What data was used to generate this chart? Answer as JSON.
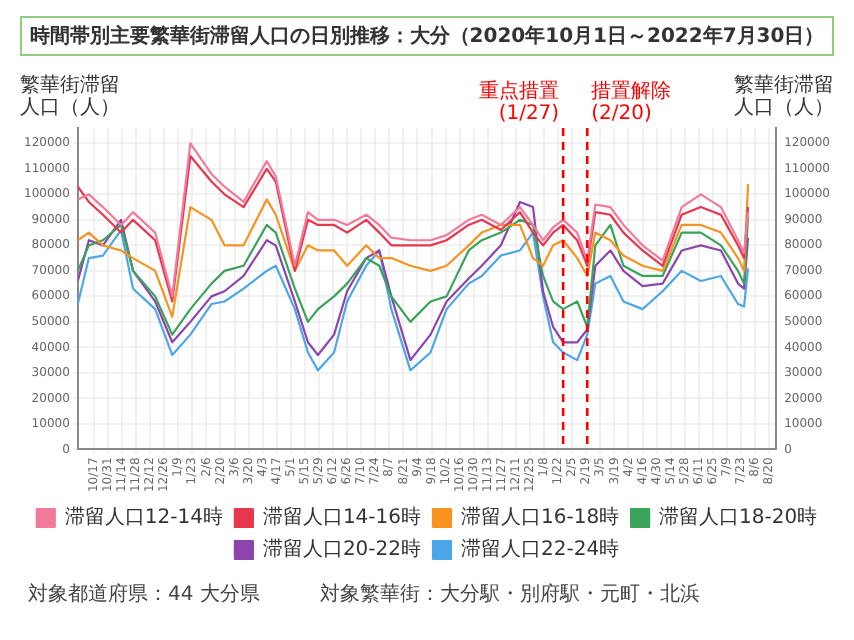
{
  "chart_data": {
    "type": "line",
    "title": "時間帯別主要繁華街滞留人口の日別推移：大分（2020年10月1日～2022年7月30日）",
    "ylabel": "繁華街滞留人口（人）",
    "y2label": "繁華街滞留人口（人）",
    "x": [
      "2020-10-01",
      "2020-10-12",
      "2020-10-26",
      "2020-11-13",
      "2020-11-25",
      "2020-12-17",
      "2021-01-03",
      "2021-01-21",
      "2021-02-11",
      "2021-02-24",
      "2021-03-15",
      "2021-04-07",
      "2021-04-16",
      "2021-05-05",
      "2021-05-18",
      "2021-05-28",
      "2021-06-13",
      "2021-06-26",
      "2021-07-15",
      "2021-07-28",
      "2021-08-09",
      "2021-08-28",
      "2021-09-17",
      "2021-10-03",
      "2021-10-25",
      "2021-11-07",
      "2021-11-26",
      "2021-12-15",
      "2021-12-28",
      "2022-01-07",
      "2022-01-17",
      "2022-01-27",
      "2022-02-10",
      "2022-02-20",
      "2022-02-28",
      "2022-03-15",
      "2022-03-28",
      "2022-04-16",
      "2022-05-06",
      "2022-05-25",
      "2022-06-13",
      "2022-07-03",
      "2022-07-20",
      "2022-07-26",
      "2022-07-30"
    ],
    "series": [
      {
        "name": "滞留人口12-14時",
        "color": "#f27a9b",
        "values": [
          98000,
          100000,
          95000,
          88000,
          93000,
          85000,
          60000,
          120000,
          108000,
          103000,
          97000,
          113000,
          107000,
          72000,
          93000,
          90000,
          90000,
          88000,
          92000,
          88000,
          83000,
          82000,
          82000,
          84000,
          90000,
          92000,
          88000,
          95000,
          88000,
          82000,
          87000,
          90000,
          85000,
          74000,
          96000,
          95000,
          88000,
          80000,
          74000,
          95000,
          100000,
          95000,
          82000,
          77000,
          93000
        ]
      },
      {
        "name": "滞留人口14-16時",
        "color": "#e8364f",
        "values": [
          103000,
          97000,
          92000,
          85000,
          90000,
          82000,
          58000,
          115000,
          105000,
          100000,
          95000,
          110000,
          105000,
          70000,
          90000,
          88000,
          88000,
          85000,
          90000,
          85000,
          80000,
          80000,
          80000,
          82000,
          88000,
          90000,
          86000,
          93000,
          85000,
          80000,
          85000,
          88000,
          82000,
          72000,
          93000,
          92000,
          85000,
          78000,
          72000,
          92000,
          95000,
          92000,
          80000,
          75000,
          95000
        ]
      },
      {
        "name": "滞留人口16-18時",
        "color": "#f7931e",
        "values": [
          82000,
          85000,
          80000,
          78000,
          75000,
          70000,
          52000,
          95000,
          90000,
          80000,
          80000,
          98000,
          92000,
          70000,
          80000,
          78000,
          78000,
          72000,
          80000,
          75000,
          75000,
          72000,
          70000,
          72000,
          80000,
          85000,
          88000,
          88000,
          75000,
          72000,
          80000,
          82000,
          75000,
          68000,
          85000,
          82000,
          76000,
          72000,
          70000,
          88000,
          88000,
          85000,
          75000,
          70000,
          104000
        ]
      },
      {
        "name": "滞留人口18-20時",
        "color": "#3aa35a",
        "values": [
          70000,
          80000,
          82000,
          88000,
          70000,
          60000,
          45000,
          55000,
          65000,
          70000,
          72000,
          88000,
          85000,
          63000,
          50000,
          55000,
          60000,
          65000,
          75000,
          72000,
          60000,
          50000,
          58000,
          60000,
          78000,
          82000,
          85000,
          90000,
          88000,
          68000,
          58000,
          55000,
          58000,
          48000,
          80000,
          88000,
          72000,
          68000,
          68000,
          85000,
          85000,
          80000,
          70000,
          65000,
          91000
        ]
      },
      {
        "name": "滞留人口20-22時",
        "color": "#8e44ad",
        "values": [
          66000,
          82000,
          80000,
          90000,
          70000,
          58000,
          42000,
          50000,
          60000,
          62000,
          68000,
          82000,
          80000,
          58000,
          42000,
          37000,
          45000,
          62000,
          75000,
          78000,
          60000,
          35000,
          45000,
          58000,
          67000,
          72000,
          80000,
          97000,
          95000,
          62000,
          48000,
          42000,
          42000,
          47000,
          72000,
          78000,
          70000,
          64000,
          65000,
          78000,
          80000,
          78000,
          65000,
          63000,
          83000
        ]
      },
      {
        "name": "滞留人口22-24時",
        "color": "#4da6e8",
        "values": [
          57000,
          75000,
          76000,
          86000,
          63000,
          55000,
          37000,
          45000,
          57000,
          58000,
          63000,
          70000,
          72000,
          55000,
          38000,
          31000,
          38000,
          58000,
          72000,
          78000,
          55000,
          31000,
          38000,
          55000,
          65000,
          68000,
          76000,
          78000,
          85000,
          60000,
          42000,
          38000,
          35000,
          45000,
          65000,
          68000,
          58000,
          55000,
          62000,
          70000,
          66000,
          68000,
          57000,
          56000,
          71000
        ]
      }
    ],
    "xlim": [
      "2020-10-01",
      "2022-08-27"
    ],
    "xticks": [
      {
        "value": "2020-10-17",
        "label": "10/17"
      },
      {
        "value": "2020-10-31",
        "label": "10/31"
      },
      {
        "value": "2020-11-14",
        "label": "11/14"
      },
      {
        "value": "2020-11-28",
        "label": "11/28"
      },
      {
        "value": "2020-12-12",
        "label": "12/12"
      },
      {
        "value": "2020-12-26",
        "label": "12/26"
      },
      {
        "value": "2021-01-09",
        "label": "1/9"
      },
      {
        "value": "2021-01-23",
        "label": "1/23"
      },
      {
        "value": "2021-02-06",
        "label": "2/6"
      },
      {
        "value": "2021-02-20",
        "label": "2/20"
      },
      {
        "value": "2021-03-06",
        "label": "3/6"
      },
      {
        "value": "2021-03-20",
        "label": "3/20"
      },
      {
        "value": "2021-04-03",
        "label": "4/3"
      },
      {
        "value": "2021-04-17",
        "label": "4/17"
      },
      {
        "value": "2021-05-01",
        "label": "5/1"
      },
      {
        "value": "2021-05-15",
        "label": "5/15"
      },
      {
        "value": "2021-05-29",
        "label": "5/29"
      },
      {
        "value": "2021-06-12",
        "label": "6/12"
      },
      {
        "value": "2021-06-26",
        "label": "6/26"
      },
      {
        "value": "2021-07-10",
        "label": "7/10"
      },
      {
        "value": "2021-07-24",
        "label": "7/24"
      },
      {
        "value": "2021-08-07",
        "label": "8/7"
      },
      {
        "value": "2021-08-21",
        "label": "8/21"
      },
      {
        "value": "2021-09-04",
        "label": "9/4"
      },
      {
        "value": "2021-09-18",
        "label": "9/18"
      },
      {
        "value": "2021-10-02",
        "label": "10/2"
      },
      {
        "value": "2021-10-16",
        "label": "10/16"
      },
      {
        "value": "2021-10-30",
        "label": "10/30"
      },
      {
        "value": "2021-11-13",
        "label": "11/13"
      },
      {
        "value": "2021-11-27",
        "label": "11/27"
      },
      {
        "value": "2021-12-11",
        "label": "12/11"
      },
      {
        "value": "2021-12-25",
        "label": "12/25"
      },
      {
        "value": "2022-01-08",
        "label": "1/8"
      },
      {
        "value": "2022-01-22",
        "label": "1/22"
      },
      {
        "value": "2022-02-05",
        "label": "2/5"
      },
      {
        "value": "2022-02-19",
        "label": "2/19"
      },
      {
        "value": "2022-03-05",
        "label": "3/5"
      },
      {
        "value": "2022-03-19",
        "label": "3/19"
      },
      {
        "value": "2022-04-02",
        "label": "4/2"
      },
      {
        "value": "2022-04-16",
        "label": "4/16"
      },
      {
        "value": "2022-04-30",
        "label": "4/30"
      },
      {
        "value": "2022-05-14",
        "label": "5/14"
      },
      {
        "value": "2022-05-28",
        "label": "5/28"
      },
      {
        "value": "2022-06-11",
        "label": "6/11"
      },
      {
        "value": "2022-06-25",
        "label": "6/25"
      },
      {
        "value": "2022-07-09",
        "label": "7/9"
      },
      {
        "value": "2022-07-23",
        "label": "7/23"
      },
      {
        "value": "2022-08-06",
        "label": "8/6"
      },
      {
        "value": "2022-08-20",
        "label": "8/20"
      }
    ],
    "ylim": [
      0,
      126000
    ],
    "yticks": [
      0,
      10000,
      20000,
      30000,
      40000,
      50000,
      60000,
      70000,
      80000,
      90000,
      100000,
      110000,
      120000
    ],
    "y2lim": [
      0,
      126000
    ],
    "y2ticks": [
      0,
      10000,
      20000,
      30000,
      40000,
      50000,
      60000,
      70000,
      80000,
      90000,
      100000,
      110000,
      120000
    ],
    "ref_lines": [
      {
        "axis": "x",
        "value": "2022-01-27",
        "label": "重点措置 (1/27)",
        "color": "#ff0000",
        "line_style": "dashed"
      },
      {
        "axis": "x",
        "value": "2022-02-20",
        "label": "措置解除 (2/20)",
        "color": "#ff0000",
        "line_style": "dashed"
      }
    ],
    "grid": true,
    "legend": "bottom",
    "marker": "none",
    "line_style": "solid",
    "annotations": [
      "対象都道府県：44 大分県",
      "対象繁華街：大分駅・別府駅・元町・北浜"
    ]
  }
}
